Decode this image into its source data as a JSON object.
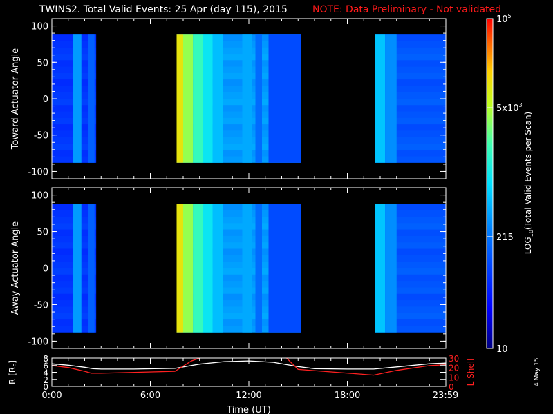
{
  "title": {
    "main": "TWINS2. Total Valid Events: 25 Apr (day 115), 2015",
    "note": "NOTE: Data Preliminary - Not validated",
    "note_color": "#ff1a1a"
  },
  "side_date": "4 May 15",
  "chart_data": [
    {
      "type": "heatmap",
      "ylabel": "Toward Actuator Angle",
      "ylim": [
        -110,
        110
      ],
      "yticks": [
        "100",
        "50",
        "0",
        "-50",
        "-100"
      ],
      "ytick_values": [
        100,
        50,
        0,
        -50,
        -100
      ],
      "data_ylim": [
        -88,
        88
      ],
      "xlim_hours": [
        0,
        24
      ],
      "segments": [
        {
          "start": 0.0,
          "end": 2.7,
          "base": 0.22,
          "stripes": [
            {
              "t0": 1.3,
              "t1": 1.8,
              "v": 0.4
            },
            {
              "t0": 2.2,
              "t1": 2.6,
              "v": 0.3
            }
          ]
        },
        {
          "start": 7.6,
          "end": 15.2,
          "base": 0.4,
          "stripes": [
            {
              "t0": 7.6,
              "t1": 8.0,
              "v": 0.8
            },
            {
              "t0": 8.0,
              "t1": 8.6,
              "v": 0.7
            },
            {
              "t0": 8.6,
              "t1": 9.2,
              "v": 0.6
            },
            {
              "t0": 9.2,
              "t1": 9.8,
              "v": 0.52
            },
            {
              "t0": 9.8,
              "t1": 10.4,
              "v": 0.45
            },
            {
              "t0": 11.6,
              "t1": 12.2,
              "v": 0.42
            },
            {
              "t0": 12.4,
              "t1": 12.8,
              "v": 0.32
            },
            {
              "t0": 13.2,
              "t1": 15.2,
              "v": 0.26
            }
          ]
        },
        {
          "start": 19.7,
          "end": 24.0,
          "base": 0.28,
          "stripes": [
            {
              "t0": 19.7,
              "t1": 20.3,
              "v": 0.46
            },
            {
              "t0": 20.3,
              "t1": 21.0,
              "v": 0.38
            }
          ]
        }
      ]
    },
    {
      "type": "heatmap",
      "ylabel": "Away Actuator Angle",
      "ylim": [
        -110,
        110
      ],
      "yticks": [
        "100",
        "50",
        "0",
        "-50",
        "-100"
      ],
      "ytick_values": [
        100,
        50,
        0,
        -50,
        -100
      ],
      "data_ylim": [
        -88,
        88
      ],
      "xlim_hours": [
        0,
        24
      ],
      "segments": [
        {
          "start": 0.0,
          "end": 2.7,
          "base": 0.22,
          "stripes": [
            {
              "t0": 1.3,
              "t1": 1.8,
              "v": 0.4
            },
            {
              "t0": 2.2,
              "t1": 2.6,
              "v": 0.3
            }
          ]
        },
        {
          "start": 7.6,
          "end": 15.2,
          "base": 0.4,
          "stripes": [
            {
              "t0": 7.6,
              "t1": 8.0,
              "v": 0.8
            },
            {
              "t0": 8.0,
              "t1": 8.6,
              "v": 0.7
            },
            {
              "t0": 8.6,
              "t1": 9.2,
              "v": 0.6
            },
            {
              "t0": 9.2,
              "t1": 9.8,
              "v": 0.52
            },
            {
              "t0": 9.8,
              "t1": 10.4,
              "v": 0.45
            },
            {
              "t0": 11.6,
              "t1": 12.2,
              "v": 0.42
            },
            {
              "t0": 12.4,
              "t1": 12.8,
              "v": 0.32
            },
            {
              "t0": 13.2,
              "t1": 15.2,
              "v": 0.26
            }
          ]
        },
        {
          "start": 19.7,
          "end": 24.0,
          "base": 0.28,
          "stripes": [
            {
              "t0": 19.7,
              "t1": 20.3,
              "v": 0.46
            },
            {
              "t0": 20.3,
              "t1": 21.0,
              "v": 0.38
            }
          ]
        }
      ]
    },
    {
      "type": "line",
      "ylabel": "R [RE]",
      "ylabel_main": "R [R",
      "ylabel_sub": "E",
      "ylabel_end": "]",
      "ylim": [
        0,
        8
      ],
      "yticks": [
        "8",
        "6",
        "4",
        "2",
        "0"
      ],
      "ytick_values": [
        8,
        6,
        4,
        2,
        0
      ],
      "y2label": "L Shell",
      "y2lim": [
        0,
        30
      ],
      "y2ticks": [
        "30",
        "20",
        "10",
        "0"
      ],
      "y2tick_values": [
        30,
        20,
        10,
        0
      ],
      "xlim_hours": [
        0,
        24
      ],
      "xticks": [
        "0:00",
        "6:00",
        "12:00",
        "18:00",
        "23:59"
      ],
      "xtick_values": [
        0,
        6,
        12,
        18,
        23.98
      ],
      "xlabel": "Time (UT)",
      "series": [
        {
          "name": "R",
          "color": "#ffffff",
          "axis": "left",
          "x": [
            0,
            1,
            2,
            2.5,
            3,
            5,
            7.5,
            9,
            10.5,
            12,
            13.5,
            15,
            16,
            18,
            19.6,
            21,
            23,
            24
          ],
          "y": [
            6.4,
            6.0,
            5.4,
            5.0,
            4.9,
            4.9,
            5.1,
            6.3,
            7.0,
            7.2,
            6.8,
            5.6,
            5.0,
            4.9,
            4.9,
            5.5,
            6.4,
            6.6
          ]
        },
        {
          "name": "L Shell",
          "color": "#ff2020",
          "axis": "right",
          "x": [
            0,
            1,
            2,
            2.4,
            3,
            7.5,
            8.5,
            9.0
          ],
          "y": [
            22,
            20,
            16,
            14,
            14,
            16,
            27,
            31
          ]
        },
        {
          "name": "L Shell b",
          "color": "#ff2020",
          "axis": "right",
          "x": [
            14.3,
            15,
            19.6,
            21,
            23,
            24
          ],
          "y": [
            31,
            18,
            12,
            17,
            22,
            23
          ]
        }
      ]
    }
  ],
  "colorbar": {
    "label_main": "LOG",
    "label_sub": "10",
    "label_rest": "(Total Valid Events per Scan)",
    "ticks": [
      {
        "main": "10",
        "exp": "5",
        "frac": 1.0
      },
      {
        "main": "5x10",
        "exp": "3",
        "frac": 0.73
      },
      {
        "main": "215",
        "exp": "",
        "frac": 0.339
      },
      {
        "main": "10",
        "exp": "",
        "frac": 0.0
      }
    ]
  }
}
